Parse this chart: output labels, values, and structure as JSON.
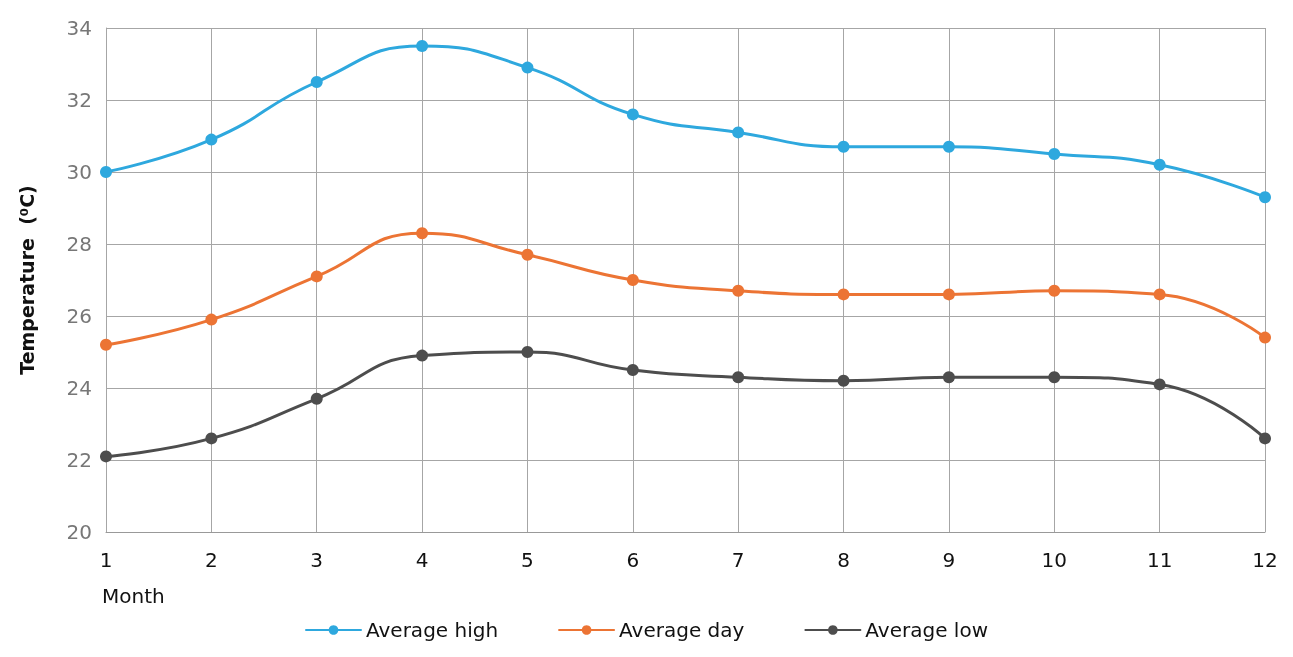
{
  "chart_data": {
    "type": "line",
    "xlabel": "Month",
    "ylabel": "Temperature  (⁰C)",
    "x": [
      1,
      2,
      3,
      4,
      5,
      6,
      7,
      8,
      9,
      10,
      11,
      12
    ],
    "xlim": [
      1,
      12
    ],
    "xticks": [
      1,
      2,
      3,
      4,
      5,
      6,
      7,
      8,
      9,
      10,
      11,
      12
    ],
    "series": [
      {
        "name": "Average high",
        "color": "#2ea8de",
        "values": [
          30.0,
          30.9,
          32.5,
          33.5,
          32.9,
          31.6,
          31.1,
          30.7,
          30.7,
          30.5,
          30.2,
          29.3
        ]
      },
      {
        "name": "Average day",
        "color": "#ec7434",
        "values": [
          25.2,
          25.9,
          27.1,
          28.3,
          27.7,
          27.0,
          26.7,
          26.6,
          26.6,
          26.7,
          26.6,
          25.4
        ]
      },
      {
        "name": "Average low",
        "color": "#4d4d4d",
        "values": [
          22.1,
          22.6,
          23.7,
          24.9,
          25.0,
          24.5,
          24.3,
          24.2,
          24.3,
          24.3,
          24.1,
          22.6
        ]
      }
    ],
    "ylim": [
      20,
      34
    ],
    "yticks": [
      20,
      22,
      24,
      26,
      28,
      30,
      32,
      34
    ],
    "grid": true,
    "legend": "bottom",
    "marker": "circle",
    "line_style": "solid"
  }
}
